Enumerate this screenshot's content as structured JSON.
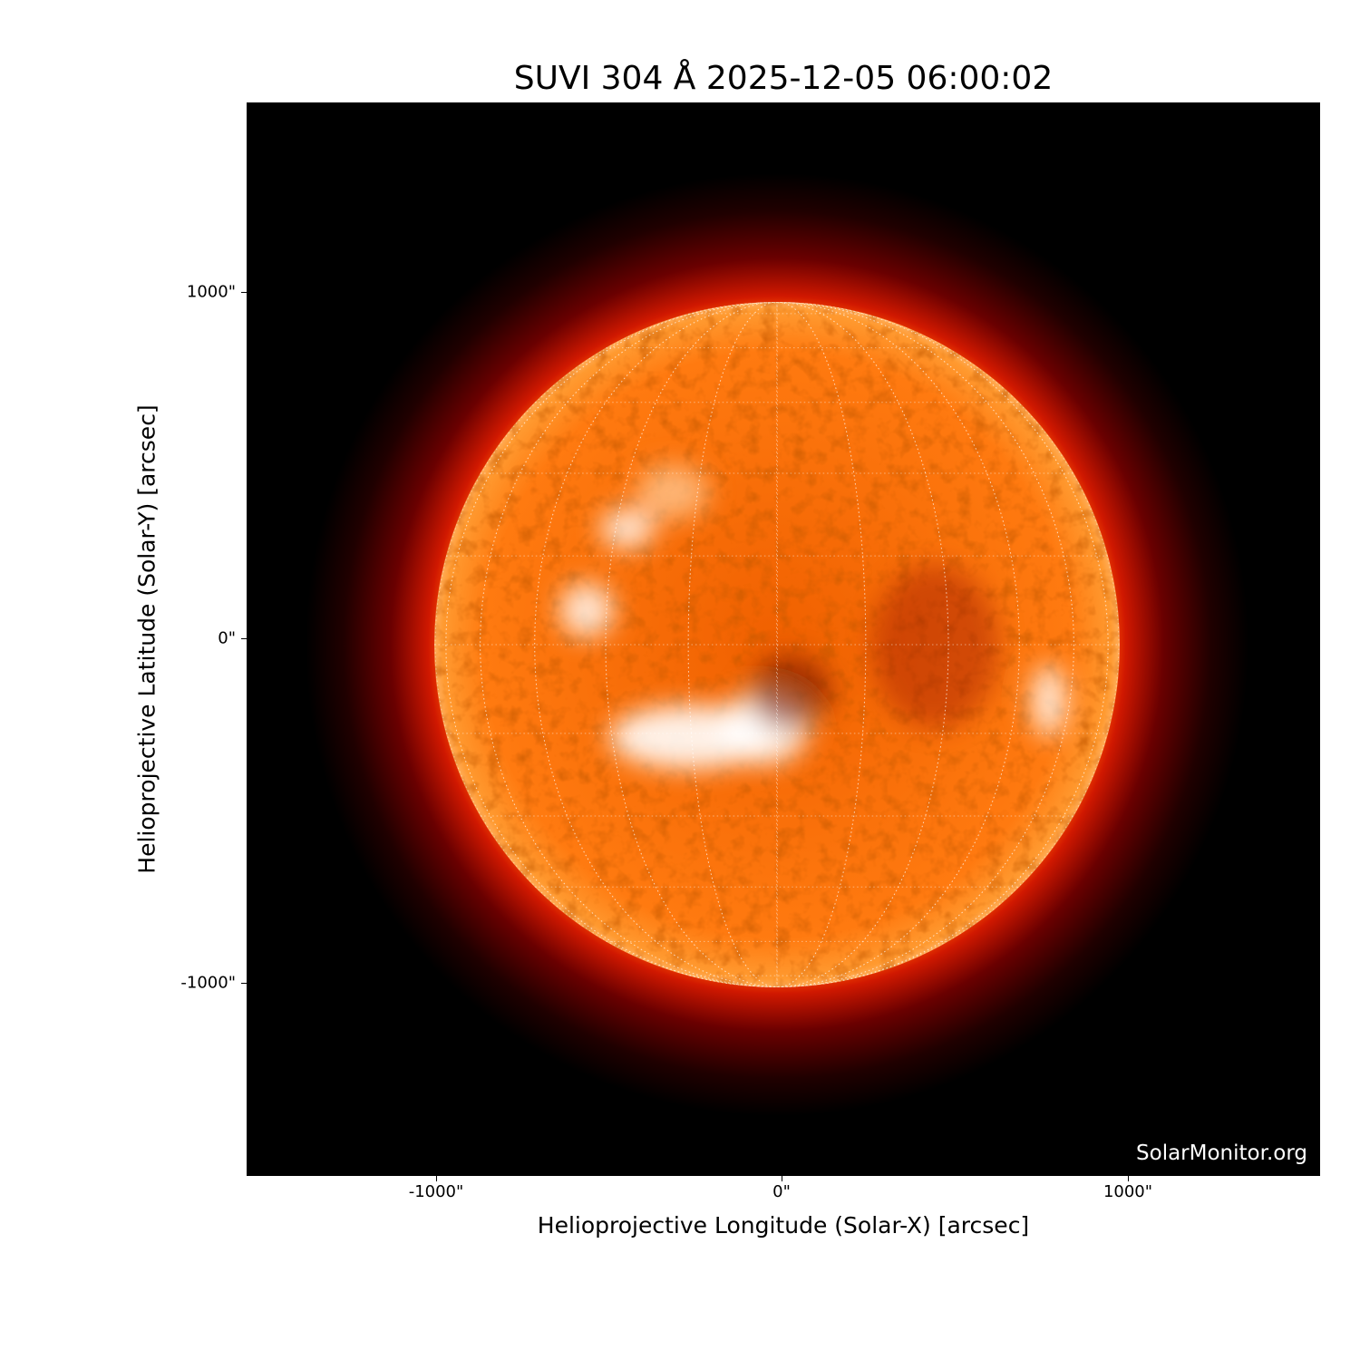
{
  "title": "SUVI 304 Å 2025-12-05 06:00:02",
  "x_axis": {
    "label": "Helioprojective Longitude (Solar-X) [arcsec]",
    "ticks": [
      "-1000\"",
      "0\"",
      "1000\""
    ],
    "tick_values": [
      -1000,
      0,
      1000
    ],
    "range": [
      -1550,
      1550
    ]
  },
  "y_axis": {
    "label": "Helioprojective Latitude (Solar-Y) [arcsec]",
    "ticks": [
      "1000\"",
      "0\"",
      "-1000\""
    ],
    "tick_values": [
      1000,
      0,
      -1000
    ],
    "range": [
      -1550,
      1550
    ]
  },
  "watermark": "SolarMonitor.org",
  "image": {
    "subject": "solar disk",
    "colormap": "red-orange-white",
    "grid": "heliographic dotted white",
    "grid_spacing_deg": 15
  },
  "colors": {
    "background": "#000000",
    "limb": "#cc2200",
    "disk": "#ff7a00",
    "bright": "#ffffff"
  }
}
